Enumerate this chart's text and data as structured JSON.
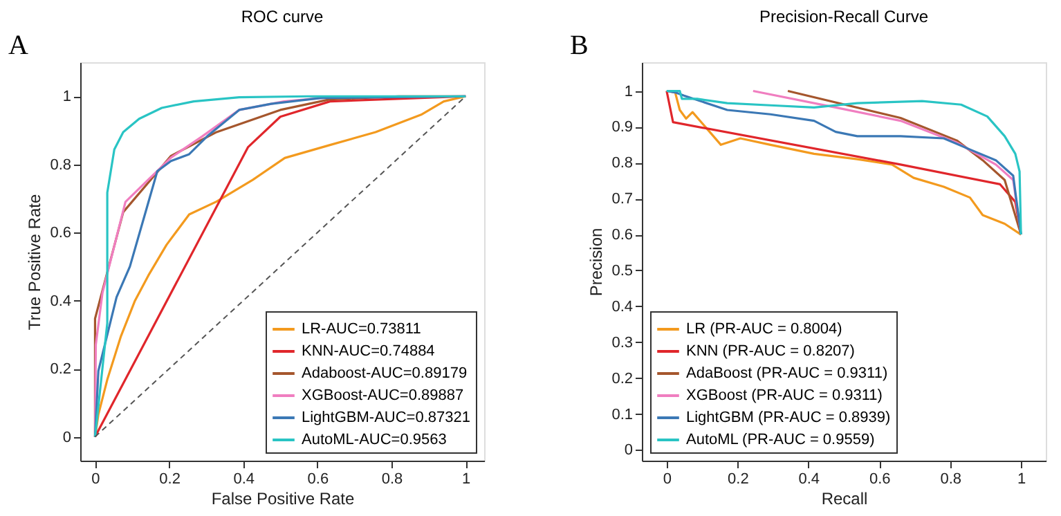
{
  "chart_data": [
    {
      "type": "line",
      "title": "ROC curve",
      "xlabel": "False Positive Rate",
      "ylabel": "True Positive Rate",
      "annotations": [
        "A"
      ],
      "xlim": [
        -0.04,
        1.05
      ],
      "ylim": [
        -0.07,
        1.1
      ],
      "xticks": [
        0,
        0.2,
        0.4,
        0.6,
        0.8,
        1
      ],
      "yticks": [
        0,
        0.2,
        0.4,
        0.6,
        0.8,
        1
      ],
      "grid": false,
      "legend": "bottom right",
      "marker": "none",
      "line_style": "solid",
      "series": [
        {
          "name": "LR-AUC=0.73811",
          "color": "#f39a1e",
          "x": [
            0,
            0.009,
            0.033,
            0.07,
            0.107,
            0.144,
            0.193,
            0.254,
            0.328,
            0.426,
            0.512,
            0.634,
            0.757,
            0.88,
            0.941,
            1
          ],
          "values": [
            0,
            0.066,
            0.168,
            0.296,
            0.398,
            0.474,
            0.564,
            0.653,
            0.691,
            0.755,
            0.819,
            0.857,
            0.895,
            0.946,
            0.985,
            1
          ]
        },
        {
          "name": "KNN-AUC=0.74884",
          "color": "#e0262b",
          "x": [
            0,
            0.413,
            0.5,
            0.634,
            1
          ],
          "values": [
            0,
            0.851,
            0.94,
            0.985,
            1
          ]
        },
        {
          "name": "Adaboost-AUC=0.89179",
          "color": "#a5562d",
          "x": [
            0,
            0,
            0.076,
            0.205,
            0.328,
            0.5,
            0.634,
            0.82,
            1
          ],
          "values": [
            0,
            0.347,
            0.66,
            0.825,
            0.895,
            0.96,
            0.991,
            1,
            1
          ]
        },
        {
          "name": "XGBoost-AUC=0.89887",
          "color": "#f07ec0",
          "x": [
            0,
            0.002,
            0.02,
            0.082,
            0.205,
            0.29,
            0.389,
            0.51,
            0.634,
            1
          ],
          "values": [
            0,
            0.27,
            0.423,
            0.69,
            0.82,
            0.883,
            0.96,
            0.985,
            0.997,
            1
          ]
        },
        {
          "name": "LightGBM-AUC=0.87321",
          "color": "#3b78b5",
          "x": [
            0,
            0.009,
            0.058,
            0.094,
            0.131,
            0.168,
            0.205,
            0.254,
            0.303,
            0.389,
            0.475,
            0.61,
            1
          ],
          "values": [
            0,
            0.194,
            0.41,
            0.5,
            0.64,
            0.78,
            0.81,
            0.83,
            0.883,
            0.96,
            0.978,
            0.995,
            1
          ]
        },
        {
          "name": "AutoML-AUC=0.9563",
          "color": "#29c4c4",
          "x": [
            0,
            0.033,
            0.033,
            0.052,
            0.076,
            0.119,
            0.18,
            0.266,
            0.389,
            0.573,
            1
          ],
          "values": [
            0,
            0.334,
            0.717,
            0.844,
            0.895,
            0.934,
            0.966,
            0.985,
            0.997,
            1,
            1
          ]
        },
        {
          "color": "#555555",
          "line_style": "dashed",
          "x": [
            0,
            1
          ],
          "values": [
            0,
            1
          ]
        }
      ]
    },
    {
      "type": "line",
      "title": "Precision-Recall Curve",
      "xlabel": "Recall",
      "ylabel": "Precision",
      "annotations": [
        "B"
      ],
      "xlim": [
        -0.07,
        1.07
      ],
      "ylim": [
        -0.03,
        1.08
      ],
      "xticks": [
        0,
        0.2,
        0.4,
        0.6,
        0.8,
        1
      ],
      "yticks": [
        0,
        0.1,
        0.2,
        0.3,
        0.4,
        0.5,
        0.6,
        0.7,
        0.8,
        0.9,
        1
      ],
      "grid": false,
      "legend": "bottom left",
      "marker": "none",
      "line_style": "solid",
      "series": [
        {
          "name": "LR (PR-AUC = 0.8004)",
          "color": "#f39a1e",
          "x": [
            0,
            0.024,
            0.037,
            0.055,
            0.073,
            0.11,
            0.153,
            0.208,
            0.293,
            0.416,
            0.538,
            0.636,
            0.697,
            0.782,
            0.856,
            0.892,
            0.954,
            1
          ],
          "values": [
            1,
            0.996,
            0.947,
            0.923,
            0.941,
            0.899,
            0.85,
            0.868,
            0.85,
            0.825,
            0.81,
            0.795,
            0.758,
            0.733,
            0.703,
            0.654,
            0.63,
            0.6
          ]
        },
        {
          "name": "KNN (PR-AUC = 0.8207)",
          "color": "#e0262b",
          "x": [
            0,
            0.018,
            0.66,
            0.941,
            0.984,
            1
          ],
          "values": [
            1,
            0.913,
            0.795,
            0.74,
            0.691,
            0.6
          ]
        },
        {
          "name": "AdaBoost (PR-AUC = 0.9311)",
          "color": "#a5562d",
          "x": [
            0.342,
            0.66,
            0.819,
            0.892,
            0.954,
            1
          ],
          "values": [
            1,
            0.925,
            0.862,
            0.807,
            0.752,
            0.6
          ]
        },
        {
          "name": "XGBoost (PR-AUC = 0.9311)",
          "color": "#f07ec0",
          "x": [
            0.244,
            0.477,
            0.66,
            0.819,
            0.929,
            0.978,
            1
          ],
          "values": [
            1,
            0.954,
            0.917,
            0.856,
            0.795,
            0.752,
            0.6
          ]
        },
        {
          "name": "LightGBM (PR-AUC = 0.8939)",
          "color": "#3b78b5",
          "x": [
            0,
            0.024,
            0.049,
            0.171,
            0.293,
            0.416,
            0.477,
            0.538,
            0.66,
            0.782,
            0.856,
            0.929,
            0.978,
            1
          ],
          "values": [
            1,
            0.996,
            0.987,
            0.947,
            0.935,
            0.917,
            0.886,
            0.874,
            0.874,
            0.868,
            0.837,
            0.807,
            0.764,
            0.6
          ]
        },
        {
          "name": "AutoML (PR-AUC = 0.9559)",
          "color": "#29c4c4",
          "x": [
            0,
            0.037,
            0.043,
            0.086,
            0.171,
            0.293,
            0.416,
            0.538,
            0.721,
            0.831,
            0.905,
            0.954,
            0.984,
            0.996,
            1
          ],
          "values": [
            1,
            1,
            0.978,
            0.978,
            0.966,
            0.96,
            0.954,
            0.966,
            0.972,
            0.962,
            0.929,
            0.874,
            0.825,
            0.776,
            0.6
          ]
        }
      ]
    }
  ]
}
